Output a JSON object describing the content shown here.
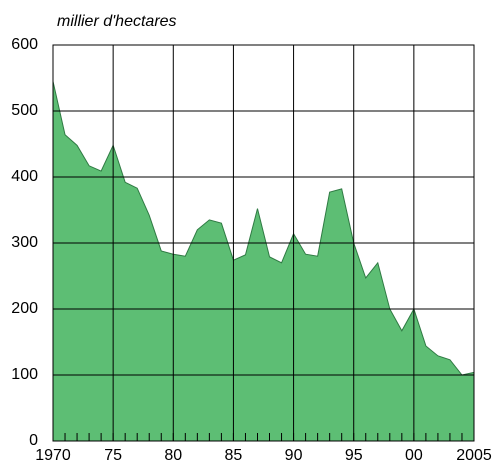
{
  "chart_data": {
    "type": "area",
    "y_label": "millier d'hectares",
    "x": [
      1970,
      1971,
      1972,
      1973,
      1974,
      1975,
      1976,
      1977,
      1978,
      1979,
      1980,
      1981,
      1982,
      1983,
      1984,
      1985,
      1986,
      1987,
      1988,
      1989,
      1990,
      1991,
      1992,
      1993,
      1994,
      1995,
      1996,
      1997,
      1998,
      1999,
      2000,
      2001,
      2002,
      2003,
      2004,
      2005
    ],
    "values": [
      545,
      464,
      448,
      417,
      409,
      448,
      392,
      383,
      342,
      288,
      283,
      280,
      320,
      335,
      330,
      274,
      282,
      352,
      279,
      270,
      314,
      283,
      280,
      377,
      382,
      300,
      247,
      270,
      200,
      167,
      200,
      144,
      129,
      123,
      100,
      104
    ],
    "color": "#5dbe74",
    "line_color": "#2f7a43",
    "xlim": [
      1970,
      2005
    ],
    "xticks": [
      1970,
      {
        "value": 1975,
        "label": "75"
      },
      {
        "value": 1980,
        "label": "80"
      },
      {
        "value": 1985,
        "label": "85"
      },
      {
        "value": 1990,
        "label": "90"
      },
      {
        "value": 1995,
        "label": "95"
      },
      {
        "value": 2000,
        "label": "00"
      },
      2005
    ],
    "ylim": [
      0,
      600
    ],
    "yticks": [
      0,
      100,
      200,
      300,
      400,
      500,
      600
    ],
    "grid": true
  }
}
